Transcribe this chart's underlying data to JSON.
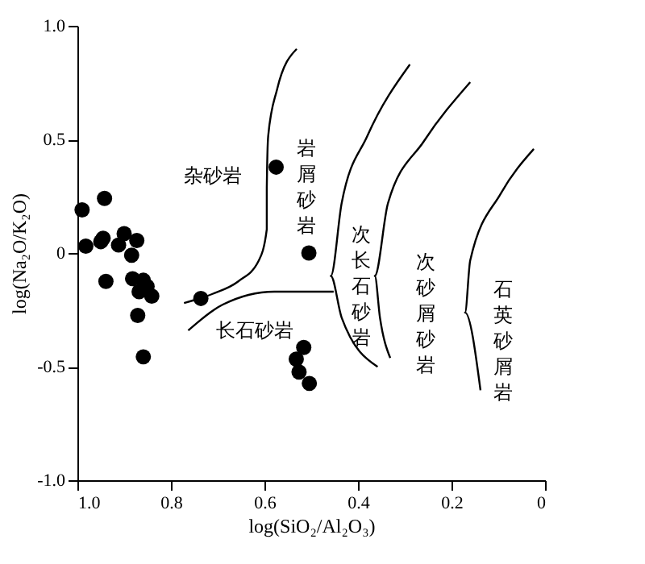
{
  "chart_data": {
    "type": "scatter",
    "xlabel": "log(SiO₂/Al₂O₃)",
    "ylabel": "log(Na₂O/K₂O)",
    "xlim": [
      1.0,
      0
    ],
    "ylim": [
      -1.0,
      1.0
    ],
    "xticks": [
      {
        "value": 1.0,
        "label": "1.0"
      },
      {
        "value": 0.8,
        "label": "0.8"
      },
      {
        "value": 0.6,
        "label": "0.6"
      },
      {
        "value": 0.4,
        "label": "0.4"
      },
      {
        "value": 0.2,
        "label": "0.2"
      },
      0
    ],
    "yticks": [
      {
        "value": 1.0,
        "label": "1.0"
      },
      {
        "value": 0.5,
        "label": "0.5"
      },
      0,
      {
        "value": -0.5,
        "label": "-0.5"
      },
      {
        "value": -1.0,
        "label": "-1.0"
      }
    ],
    "grid": false,
    "marker": "circle",
    "series": [
      {
        "type": "scatter",
        "color": "#000000",
        "x": [
          0.99,
          0.942,
          0.982,
          0.945,
          0.95,
          0.9,
          0.912,
          0.873,
          0.884,
          0.939,
          0.882,
          0.859,
          0.851,
          0.868,
          0.841,
          0.871,
          0.859,
          0.575,
          0.505,
          0.736,
          0.516,
          0.532,
          0.526,
          0.504
        ],
        "values": [
          0.19,
          0.24,
          0.03,
          0.065,
          0.05,
          0.085,
          0.035,
          0.055,
          -0.01,
          -0.125,
          -0.113,
          -0.12,
          -0.147,
          -0.17,
          -0.19,
          -0.275,
          -0.457,
          0.378,
          0.0,
          -0.2,
          -0.416,
          -0.467,
          -0.524,
          -0.574
        ]
      },
      {
        "type": "line",
        "color": "#000000",
        "marker": "none",
        "x": [
          0.531,
          0.573,
          0.592,
          0.595,
          0.595,
          0.612,
          0.656,
          0.711,
          0.772
        ],
        "values": [
          0.898,
          0.72,
          0.515,
          0.286,
          0.104,
          -0.033,
          -0.125,
          -0.18,
          -0.22
        ]
      },
      {
        "type": "line",
        "color": "#000000",
        "marker": "none",
        "x": [
          0.763,
          0.689,
          0.579,
          0.452
        ],
        "values": [
          -0.341,
          -0.227,
          -0.17,
          -0.17
        ]
      },
      {
        "type": "line",
        "color": "#000000",
        "marker": "none",
        "x": [
          0.289,
          0.38,
          0.435,
          0.458,
          0.435,
          0.358
        ],
        "values": [
          0.83,
          0.515,
          0.218,
          -0.101,
          -0.284,
          -0.501
        ]
      },
      {
        "type": "line",
        "color": "#000000",
        "marker": "none",
        "x": [
          0.16,
          0.259,
          0.336,
          0.364,
          0.353,
          0.331
        ],
        "values": [
          0.752,
          0.492,
          0.218,
          -0.101,
          -0.284,
          -0.462
        ]
      },
      {
        "type": "line",
        "color": "#000000",
        "marker": "none",
        "x": [
          0.024,
          0.094,
          0.16,
          0.171,
          0.138
        ],
        "values": [
          0.458,
          0.264,
          -0.033,
          -0.262,
          -0.604
        ]
      }
    ],
    "annotations": [
      "杂砂岩",
      "岩屑砂岩",
      "次长石砂岩",
      "次砂屑砂岩",
      "石英砂屑岩",
      "长石砂岩"
    ]
  }
}
